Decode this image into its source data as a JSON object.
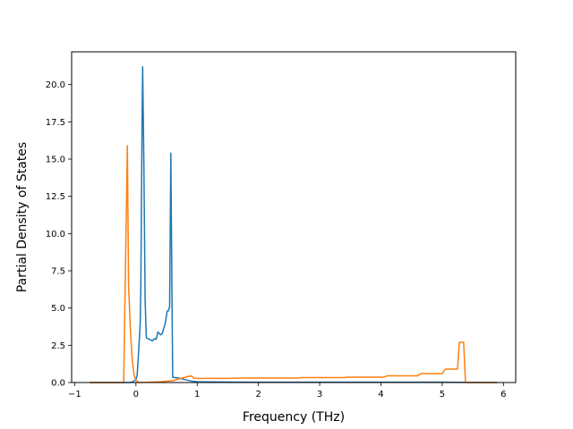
{
  "chart_data": {
    "type": "line",
    "title": "",
    "xlabel": "Frequency (THz)",
    "ylabel": "Partial Density of States",
    "xlim": [
      -1.05,
      6.2
    ],
    "ylim": [
      0,
      22.2
    ],
    "xticks": [
      -1,
      0,
      1,
      2,
      3,
      4,
      5,
      6
    ],
    "xtick_labels": [
      "−1",
      "0",
      "1",
      "2",
      "3",
      "4",
      "5",
      "6"
    ],
    "yticks": [
      0,
      2.5,
      5,
      7.5,
      10,
      12.5,
      15,
      17.5,
      20
    ],
    "ytick_labels": [
      "0.0",
      "2.5",
      "5.0",
      "7.5",
      "10.0",
      "12.5",
      "15.0",
      "17.5",
      "20.0"
    ],
    "grid": false,
    "legend": null,
    "colors": {
      "series_1": "#1f77b4",
      "series_2": "#ff7f0e"
    },
    "series": [
      {
        "color": "#1f77b4",
        "points": [
          [
            -0.75,
            0
          ],
          [
            -0.1,
            0
          ],
          [
            -0.05,
            0.05
          ],
          [
            0.0,
            0.2
          ],
          [
            0.02,
            0.5
          ],
          [
            0.05,
            2.5
          ],
          [
            0.07,
            4.0
          ],
          [
            0.08,
            6.5
          ],
          [
            0.1,
            17.5
          ],
          [
            0.11,
            21.2
          ],
          [
            0.13,
            14.5
          ],
          [
            0.15,
            5.5
          ],
          [
            0.17,
            3.0
          ],
          [
            0.22,
            2.9
          ],
          [
            0.27,
            2.8
          ],
          [
            0.3,
            2.95
          ],
          [
            0.33,
            2.9
          ],
          [
            0.36,
            3.4
          ],
          [
            0.4,
            3.2
          ],
          [
            0.43,
            3.3
          ],
          [
            0.48,
            4.0
          ],
          [
            0.51,
            4.8
          ],
          [
            0.53,
            4.8
          ],
          [
            0.55,
            5.1
          ],
          [
            0.57,
            15.4
          ],
          [
            0.59,
            5.0
          ],
          [
            0.6,
            0.35
          ],
          [
            0.7,
            0.3
          ],
          [
            0.8,
            0.2
          ],
          [
            0.9,
            0.1
          ],
          [
            1.0,
            0.05
          ],
          [
            1.5,
            0.03
          ],
          [
            2.0,
            0.02
          ],
          [
            3.0,
            0.02
          ],
          [
            4.0,
            0.02
          ],
          [
            5.0,
            0.02
          ],
          [
            5.9,
            0
          ]
        ]
      },
      {
        "color": "#ff7f0e",
        "points": [
          [
            -0.75,
            0
          ],
          [
            -0.2,
            0
          ],
          [
            -0.17,
            8.0
          ],
          [
            -0.14,
            15.9
          ],
          [
            -0.12,
            6.5
          ],
          [
            -0.09,
            3.5
          ],
          [
            -0.06,
            1.5
          ],
          [
            -0.03,
            0.5
          ],
          [
            0.0,
            0.15
          ],
          [
            0.05,
            0
          ],
          [
            0.2,
            0.02
          ],
          [
            0.4,
            0.05
          ],
          [
            0.6,
            0.12
          ],
          [
            0.75,
            0.3
          ],
          [
            0.9,
            0.45
          ],
          [
            0.95,
            0.28
          ],
          [
            1.5,
            0.28
          ],
          [
            1.75,
            0.3
          ],
          [
            2.65,
            0.3
          ],
          [
            2.7,
            0.33
          ],
          [
            3.4,
            0.33
          ],
          [
            3.45,
            0.36
          ],
          [
            4.05,
            0.36
          ],
          [
            4.1,
            0.45
          ],
          [
            4.6,
            0.45
          ],
          [
            4.65,
            0.6
          ],
          [
            5.0,
            0.6
          ],
          [
            5.05,
            0.9
          ],
          [
            5.25,
            0.9
          ],
          [
            5.28,
            2.7
          ],
          [
            5.35,
            2.7
          ],
          [
            5.38,
            0
          ],
          [
            5.9,
            0
          ]
        ]
      }
    ]
  }
}
